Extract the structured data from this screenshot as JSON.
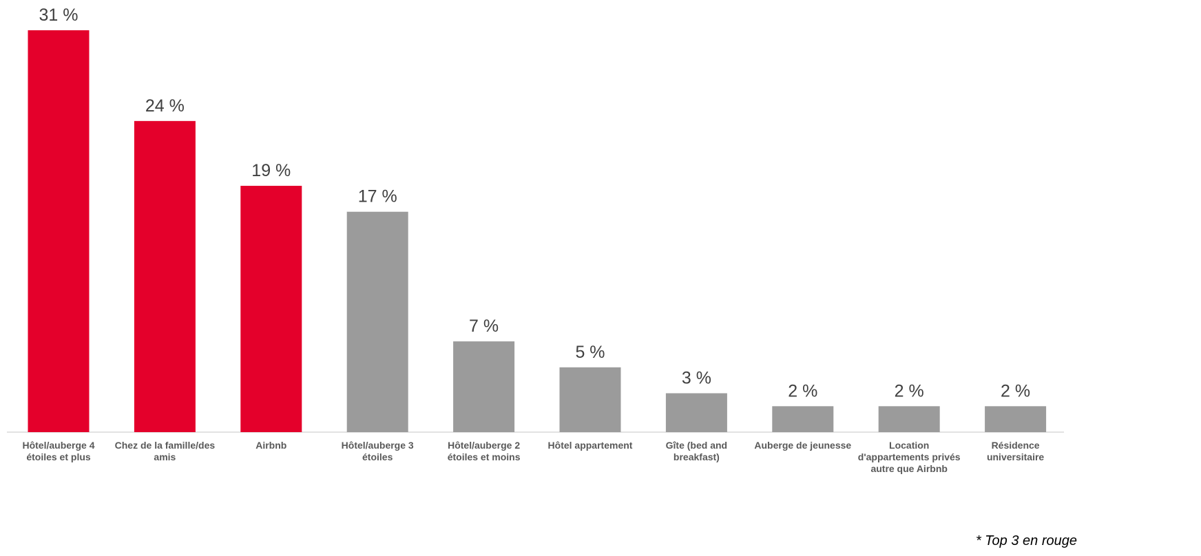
{
  "chart_data": {
    "type": "bar",
    "categories": [
      "Hôtel/auberge 4 étoiles et plus",
      "Chez de la famille/des amis",
      "Airbnb",
      "Hôtel/auberge 3 étoiles",
      "Hôtel/auberge 2 étoiles et moins",
      "Hôtel appartement",
      "Gîte (bed and breakfast)",
      "Auberge de jeunesse",
      "Location d'appartements privés autre que Airbnb",
      "Résidence universitaire"
    ],
    "values": [
      31,
      24,
      19,
      17,
      7,
      5,
      3,
      2,
      2,
      2
    ],
    "value_labels": [
      "31 %",
      "24 %",
      "19 %",
      "17 %",
      "7 %",
      "5 %",
      "3 %",
      "2 %",
      "2 %",
      "2 %"
    ],
    "colors": [
      "#e4002b",
      "#e4002b",
      "#e4002b",
      "#9b9b9b",
      "#9b9b9b",
      "#9b9b9b",
      "#9b9b9b",
      "#9b9b9b",
      "#9b9b9b",
      "#9b9b9b"
    ],
    "annotation": "* Top 3 en rouge"
  }
}
